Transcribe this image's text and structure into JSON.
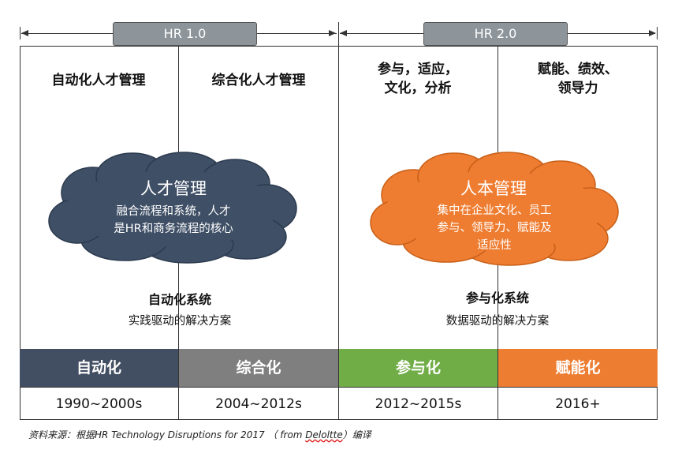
{
  "eras": {
    "hr1": "HR 1.0",
    "hr2": "HR 2.0"
  },
  "phases": {
    "p1": "自动化人才管理",
    "p2": "综合化人才管理",
    "p3_line1": "参与，适应，",
    "p3_line2": "文化，分析",
    "p4_line1": "赋能、绩效、",
    "p4_line2": "领导力"
  },
  "clouds": {
    "left": {
      "title": "人才管理",
      "line1": "融合流程和系统，人才",
      "line2": "是HR和商务流程的核心",
      "color": "#3f4f66"
    },
    "right": {
      "title": "人本管理",
      "line1": "集中在企业文化、员工",
      "line2": "参与、领导力、赋能及",
      "line3": "适应性",
      "color": "#ef7d31"
    }
  },
  "systems": {
    "left_title": "自动化系统",
    "left_sub": "实践驱动的解决方案",
    "right_title": "参与化系统",
    "right_sub": "数据驱动的解决方案"
  },
  "stages": [
    {
      "label": "自动化",
      "years": "1990~2000s",
      "color": "#424f63"
    },
    {
      "label": "综合化",
      "years": "2004~2012s",
      "color": "#7f7f7f"
    },
    {
      "label": "参与化",
      "years": "2012~2015s",
      "color": "#70ad47"
    },
    {
      "label": "赋能化",
      "years": "2016+",
      "color": "#ed7d31"
    }
  ],
  "source": {
    "prefix": "资料来源：根据HR Technology Disruptions for 2017 （ from ",
    "org": "Deloltte",
    "suffix": "）编译"
  }
}
